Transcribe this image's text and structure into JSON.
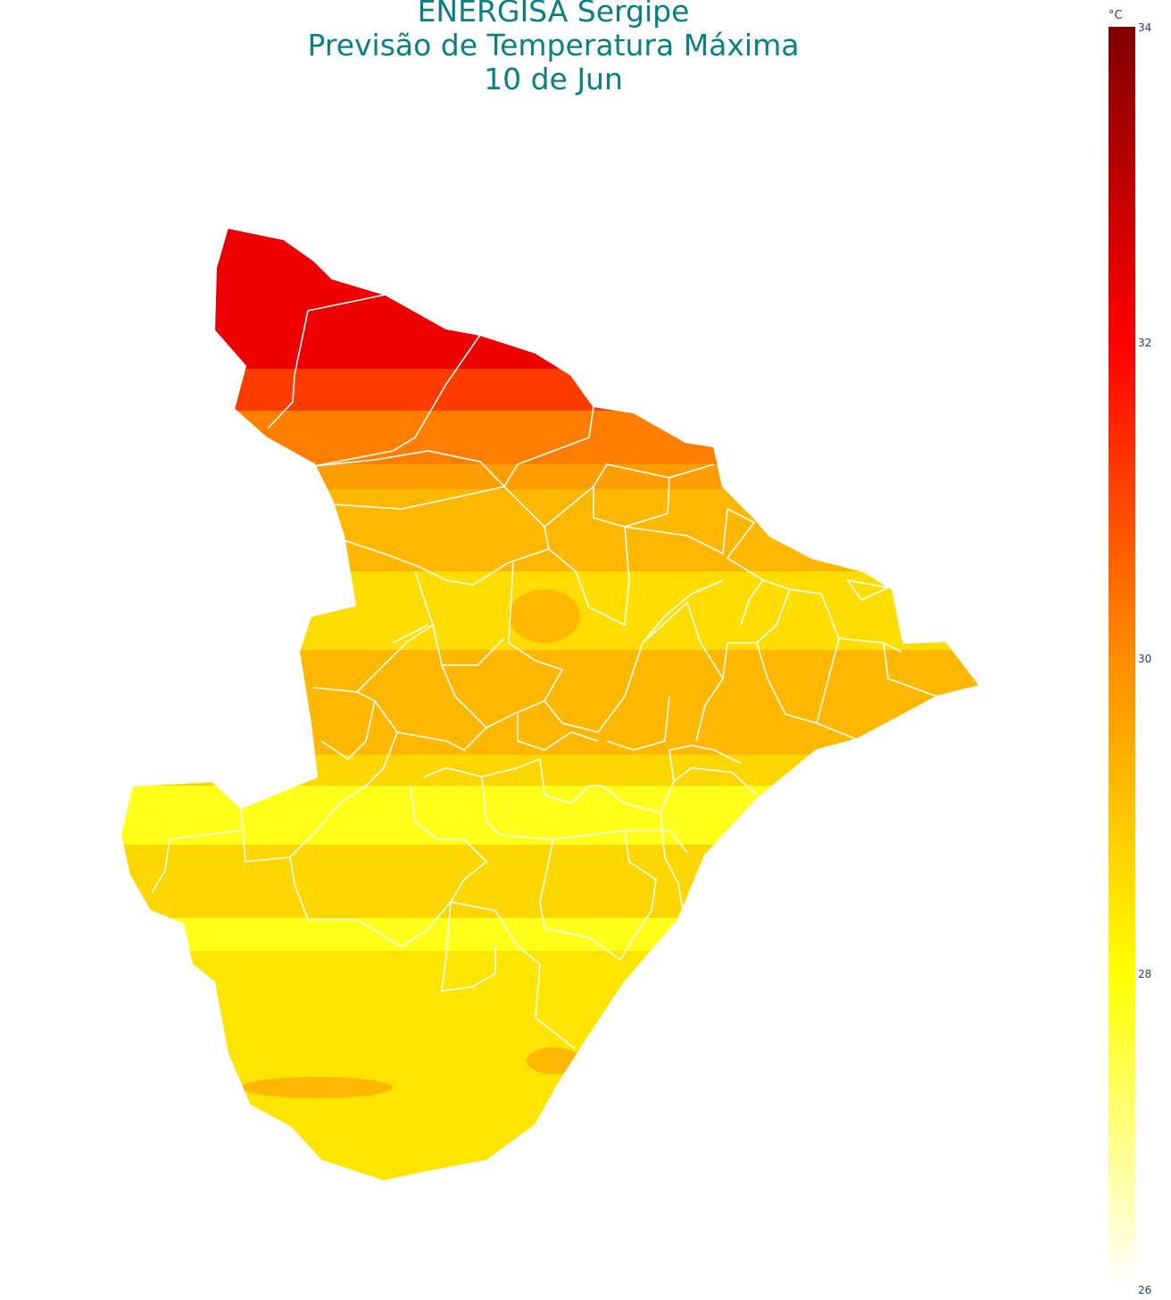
{
  "title": {
    "line1": "ENERGISA Sergipe",
    "line2": "Previsão de Temperatura Máxima",
    "line3": "10 de Jun"
  },
  "colorbar": {
    "unit": "°C",
    "min": 26,
    "max": 34,
    "ticks": [
      "34",
      "32",
      "30",
      "28",
      "26"
    ],
    "colors": [
      "#ffffff",
      "#ffff00",
      "#ff8c00",
      "#ff0000",
      "#800000"
    ]
  },
  "bands": [
    {
      "label": "north",
      "temp": 32.6,
      "color": "#ee0000"
    },
    {
      "label": "north-central",
      "temp": 31.3,
      "color": "#ff3c00"
    },
    {
      "label": "central-north",
      "temp": 30.6,
      "color": "#ff7e00"
    },
    {
      "label": "central",
      "temp": 29.6,
      "color": "#ffb700"
    },
    {
      "label": "south-central",
      "temp": 28.6,
      "color": "#ffd700"
    },
    {
      "label": "south",
      "temp": 28.2,
      "color": "#ffe400"
    },
    {
      "label": "southwest",
      "temp": 27.8,
      "color": "#ffff1a"
    }
  ]
}
